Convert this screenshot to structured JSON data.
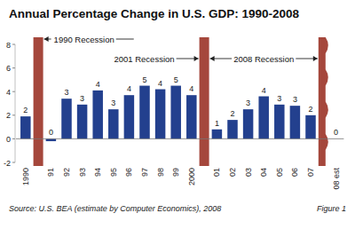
{
  "chart_data": {
    "type": "bar",
    "title": "Annual Percentage Change in U.S. GDP: 1990-2008",
    "source": "Source: U.S. BEA (estimate by Computer Economics), 2008",
    "figure_label": "Figure 1",
    "categories": [
      "1990",
      "91",
      "92",
      "93",
      "94",
      "95",
      "96",
      "97",
      "98",
      "99",
      "2000",
      "01",
      "02",
      "03",
      "04",
      "05",
      "06",
      "07",
      "08 est"
    ],
    "values": [
      1.9,
      -0.2,
      3.4,
      2.9,
      4.1,
      2.5,
      3.7,
      4.5,
      4.2,
      4.5,
      3.7,
      0.8,
      1.6,
      2.5,
      3.6,
      2.9,
      2.8,
      2.0,
      0
    ],
    "value_labels": [
      "2",
      "0",
      "3",
      "3",
      "4",
      "3",
      "4",
      "5",
      "4",
      "5",
      "4",
      "1",
      "2",
      "3",
      "4",
      "3",
      "3",
      "2",
      "0"
    ],
    "color": "#23408e",
    "ylim": [
      -2,
      8
    ],
    "yticks": [
      -2,
      0,
      2,
      4,
      6,
      8
    ],
    "grid": false,
    "data_labels": true,
    "annotations": [
      {
        "text": "1990 Recession",
        "x": "91"
      },
      {
        "text": "2001 Recession",
        "x": "01"
      },
      {
        "text": "2008 Recession",
        "x": "08 est"
      }
    ]
  }
}
